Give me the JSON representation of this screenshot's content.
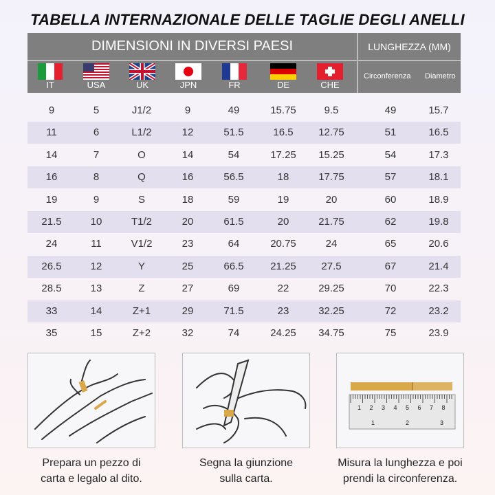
{
  "title": "TABELLA INTERNAZIONALE DELLE TAGLIE DEGLI ANELLI",
  "header": {
    "countries_title": "DIMENSIONI IN DIVERSI PAESI",
    "length_title": "LUNGHEZZA (MM)",
    "circumference": "Circonferenza",
    "diameter": "Diametro",
    "countries": [
      {
        "code": "IT",
        "flag": "italy-flag"
      },
      {
        "code": "USA",
        "flag": "usa-flag"
      },
      {
        "code": "UK",
        "flag": "uk-flag"
      },
      {
        "code": "JPN",
        "flag": "japan-flag"
      },
      {
        "code": "FR",
        "flag": "france-flag"
      },
      {
        "code": "DE",
        "flag": "germany-flag"
      },
      {
        "code": "CHE",
        "flag": "switzerland-flag"
      }
    ]
  },
  "rows": [
    [
      "9",
      "5",
      "J1/2",
      "9",
      "49",
      "15.75",
      "9.5",
      "49",
      "15.7"
    ],
    [
      "11",
      "6",
      "L1/2",
      "12",
      "51.5",
      "16.5",
      "12.75",
      "51",
      "16.5"
    ],
    [
      "14",
      "7",
      "O",
      "14",
      "54",
      "17.25",
      "15.25",
      "54",
      "17.3"
    ],
    [
      "16",
      "8",
      "Q",
      "16",
      "56.5",
      "18",
      "17.75",
      "57",
      "18.1"
    ],
    [
      "19",
      "9",
      "S",
      "18",
      "59",
      "19",
      "20",
      "60",
      "18.9"
    ],
    [
      "21.5",
      "10",
      "T1/2",
      "20",
      "61.5",
      "20",
      "21.75",
      "62",
      "19.8"
    ],
    [
      "24",
      "11",
      "V1/2",
      "23",
      "64",
      "20.75",
      "24",
      "65",
      "20.6"
    ],
    [
      "26.5",
      "12",
      "Y",
      "25",
      "66.5",
      "21.25",
      "27.5",
      "67",
      "21.4"
    ],
    [
      "28.5",
      "13",
      "Z",
      "27",
      "69",
      "22",
      "29.25",
      "70",
      "22.3"
    ],
    [
      "33",
      "14",
      "Z+1",
      "29",
      "71.5",
      "23",
      "32.25",
      "72",
      "23.2"
    ],
    [
      "35",
      "15",
      "Z+2",
      "32",
      "74",
      "24.25",
      "34.75",
      "75",
      "23.9"
    ]
  ],
  "steps": [
    {
      "line1": "Prepara un pezzo di",
      "line2": "carta e legalo al dito."
    },
    {
      "line1": "Segna la giunzione",
      "line2": "sulla carta."
    },
    {
      "line1": "Misura la lunghezza e poi",
      "line2": "prendi la circonferenza."
    }
  ],
  "ruler_numbers": [
    "1",
    "2",
    "3",
    "4",
    "5",
    "6",
    "7",
    "8",
    "1",
    "2",
    "3"
  ],
  "colors": {
    "header": "#7f7f7f",
    "stripe": "#e3dfee",
    "paper": "#d9a84a"
  }
}
